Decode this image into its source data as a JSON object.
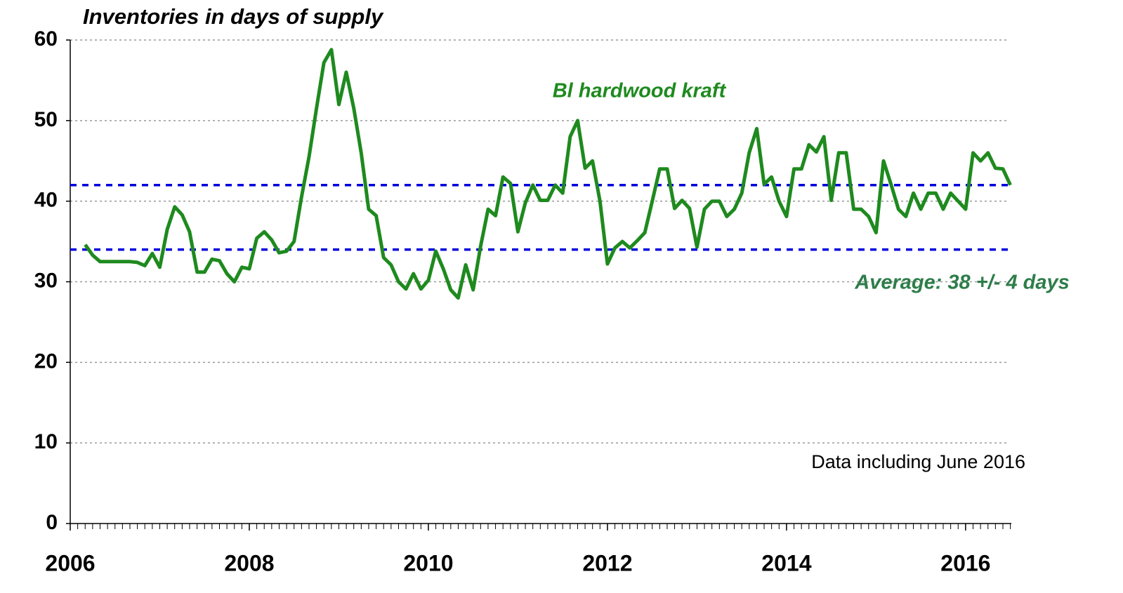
{
  "chart_data": {
    "type": "line",
    "title": "Inventories in days of supply",
    "x": [
      2006.167,
      2006.25,
      2006.333,
      2006.417,
      2006.5,
      2006.583,
      2006.667,
      2006.75,
      2006.833,
      2006.917,
      2007,
      2007.083,
      2007.167,
      2007.25,
      2007.333,
      2007.417,
      2007.5,
      2007.583,
      2007.667,
      2007.75,
      2007.833,
      2007.917,
      2008,
      2008.083,
      2008.167,
      2008.25,
      2008.333,
      2008.417,
      2008.5,
      2008.583,
      2008.667,
      2008.75,
      2008.833,
      2008.917,
      2009,
      2009.083,
      2009.167,
      2009.25,
      2009.333,
      2009.417,
      2009.5,
      2009.583,
      2009.667,
      2009.75,
      2009.833,
      2009.917,
      2010,
      2010.083,
      2010.167,
      2010.25,
      2010.333,
      2010.417,
      2010.5,
      2010.583,
      2010.667,
      2010.75,
      2010.833,
      2010.917,
      2011,
      2011.083,
      2011.167,
      2011.25,
      2011.333,
      2011.417,
      2011.5,
      2011.583,
      2011.667,
      2011.75,
      2011.833,
      2011.917,
      2012,
      2012.083,
      2012.167,
      2012.25,
      2012.333,
      2012.417,
      2012.5,
      2012.583,
      2012.667,
      2012.75,
      2012.833,
      2012.917,
      2013,
      2013.083,
      2013.167,
      2013.25,
      2013.333,
      2013.417,
      2013.5,
      2013.583,
      2013.667,
      2013.75,
      2013.833,
      2013.917,
      2014,
      2014.083,
      2014.167,
      2014.25,
      2014.333,
      2014.417,
      2014.5,
      2014.583,
      2014.667,
      2014.75,
      2014.833,
      2014.917,
      2015,
      2015.083,
      2015.167,
      2015.25,
      2015.333,
      2015.417,
      2015.5,
      2015.583,
      2015.667,
      2015.75,
      2015.833,
      2015.917,
      2016,
      2016.083,
      2016.167,
      2016.25,
      2016.333,
      2016.417,
      2016.5
    ],
    "series": [
      {
        "name": "Bl hardwood kraft",
        "color": "#1e8a1e",
        "values": [
          34.6,
          33.3,
          32.5,
          32.5,
          32.5,
          32.5,
          32.5,
          32.4,
          32.0,
          33.5,
          31.8,
          36.5,
          39.3,
          38.3,
          36.2,
          31.2,
          31.2,
          32.8,
          32.6,
          31.0,
          30.0,
          31.8,
          31.6,
          35.4,
          36.2,
          35.2,
          33.6,
          33.8,
          35.0,
          40.5,
          45.5,
          51.5,
          57.2,
          58.8,
          52.0,
          56.0,
          51.5,
          46.0,
          39.0,
          38.2,
          33.0,
          32.1,
          30.0,
          29.1,
          31.0,
          29.1,
          30.2,
          33.8,
          31.6,
          29.0,
          28.0,
          32.1,
          29.0,
          34.4,
          39.0,
          38.2,
          43.0,
          42.2,
          36.2,
          39.8,
          42.0,
          40.1,
          40.1,
          42.0,
          41.0,
          48.0,
          50.0,
          44.1,
          45.0,
          40.0,
          32.2,
          34.2,
          35.0,
          34.2,
          35.1,
          36.1,
          40.0,
          44.0,
          44.0,
          39.1,
          40.1,
          39.1,
          34.3,
          39.0,
          40.0,
          40.0,
          38.1,
          39.0,
          41.0,
          46.0,
          49.0,
          42.1,
          43.0,
          40.0,
          38.1,
          44.0,
          44.0,
          47.0,
          46.1,
          48.0,
          40.1,
          46.0,
          46.0,
          39.0,
          39.0,
          38.1,
          36.1,
          45.0,
          42.1,
          39.0,
          38.1,
          41.0,
          39.0,
          41.0,
          41.0,
          39.0,
          41.0,
          40.0,
          39.0,
          46.0,
          45.0,
          46.0,
          44.1,
          44.0,
          42.0
        ]
      }
    ],
    "xlim": [
      2006,
      2016.55
    ],
    "xticks": [
      2006,
      2008,
      2010,
      2012,
      2014,
      2016
    ],
    "ylim": [
      0,
      60
    ],
    "yticks": [
      0,
      10,
      20,
      30,
      40,
      50,
      60
    ],
    "grid": true,
    "reference_lines": [
      {
        "value": 42,
        "color": "#0000dd"
      },
      {
        "value": 34,
        "color": "#0000dd"
      }
    ],
    "annotations": [
      "Average: 38 +/- 4 days",
      "Data including June 2016"
    ]
  }
}
